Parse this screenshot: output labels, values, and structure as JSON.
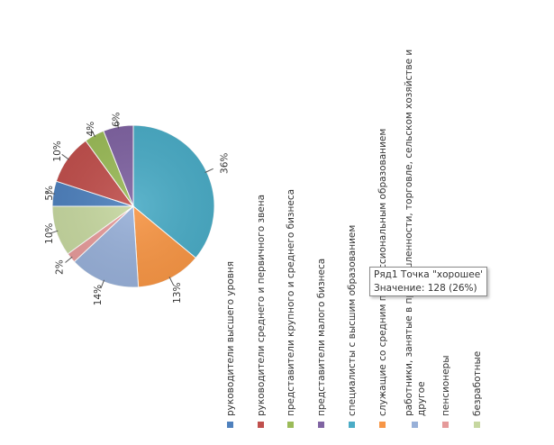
{
  "chart_data": {
    "type": "pie",
    "categories": [
      "руководители высшего уровня",
      "руководители среднего и первичного звена",
      "представители крупного и среднего бизнеса",
      "представители малого бизнеса",
      "специалисты с высшим образованием",
      "служащие со средним профессиональным образованием",
      "работники, занятые в промышленности, торговле, сельском хозяйстве и другое",
      "пенсионеры",
      "безработные"
    ],
    "values": [
      5,
      10,
      4,
      6,
      36,
      13,
      14,
      2,
      10
    ],
    "data_labels": [
      "5%",
      "10%",
      "4%",
      "6%",
      "36%",
      "13%",
      "14%",
      "2%",
      "10%"
    ],
    "colors": [
      "#4f81bd",
      "#c0504d",
      "#9bbb59",
      "#8064a2",
      "#4bacc6",
      "#f79646",
      "#98b0d8",
      "#e59a9a",
      "#c6d7a0"
    ],
    "legend_position": "bottom",
    "orientation": "rotated-90-ccw"
  },
  "tooltip": {
    "line1": "Ряд1 Точка \"хорошее\"",
    "line2": "Значение: 128 (26%)"
  }
}
